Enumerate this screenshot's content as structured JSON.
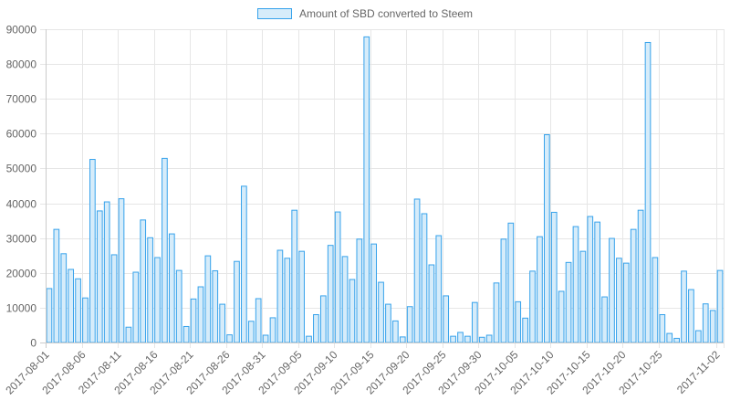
{
  "colors": {
    "bar_fill": "#d6ecfa",
    "bar_stroke": "#36a2eb",
    "grid": "#e6e6e6",
    "text": "#666666"
  },
  "chart_data": {
    "type": "bar",
    "title": "",
    "xlabel": "",
    "ylabel": "",
    "legend": "top-center",
    "grid": true,
    "ylim": [
      0,
      90000
    ],
    "y_ticks": [
      0,
      10000,
      20000,
      30000,
      40000,
      50000,
      60000,
      70000,
      80000,
      90000
    ],
    "x_tick_labels": [
      "2017-08-01",
      "2017-08-06",
      "2017-08-11",
      "2017-08-16",
      "2017-08-21",
      "2017-08-26",
      "2017-08-31",
      "2017-09-05",
      "2017-09-10",
      "2017-09-15",
      "2017-09-20",
      "2017-09-25",
      "2017-09-30",
      "2017-10-05",
      "2017-10-10",
      "2017-10-15",
      "2017-10-20",
      "2017-10-25",
      "2017-11-02"
    ],
    "x_start": "2017-08-01",
    "x_end": "2017-11-02",
    "series": [
      {
        "name": "Amount of SBD converted to Steem",
        "values": [
          15500,
          32500,
          25500,
          21000,
          18300,
          12800,
          52600,
          37800,
          40400,
          25200,
          41300,
          4400,
          20200,
          35200,
          30100,
          24400,
          52900,
          31200,
          20700,
          4600,
          12500,
          16000,
          24900,
          20600,
          11000,
          2200,
          23300,
          44900,
          6100,
          12600,
          2100,
          7100,
          26500,
          24200,
          38000,
          26200,
          1800,
          8000,
          13400,
          27900,
          37500,
          24700,
          18100,
          29700,
          87800,
          28300,
          17300,
          11000,
          6200,
          1600,
          10300,
          41200,
          37000,
          22300,
          30700,
          13400,
          1800,
          2900,
          1800,
          11500,
          1500,
          2100,
          17100,
          29700,
          34300,
          11700,
          7000,
          20500,
          30400,
          59700,
          37400,
          14700,
          23000,
          33300,
          26200,
          36200,
          34600,
          13100,
          29900,
          24200,
          22800,
          32500,
          38000,
          86200,
          24400,
          8000,
          2600,
          1200,
          20500,
          15200,
          3400,
          11100,
          9200,
          20700
        ]
      }
    ]
  }
}
